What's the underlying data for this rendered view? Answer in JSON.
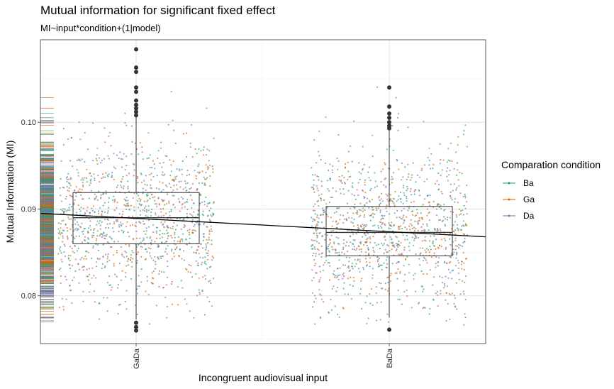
{
  "chart_data": {
    "type": "scatter",
    "title": "Mutual information for significant fixed effect",
    "subtitle": "MI~input*condition+(1|model)",
    "xlabel": "Incongruent audiovisual input",
    "ylabel": "Mutual Information (MI)",
    "categories": [
      "GaDa",
      "BaDa"
    ],
    "ylim": [
      0.0745,
      0.1095
    ],
    "yticks": [
      0.08,
      0.09,
      0.1
    ],
    "ytick_labels": [
      "0.08",
      "0.09",
      "0.10"
    ],
    "grid": true,
    "legend": {
      "title": "Comparation condition",
      "position": "right",
      "entries": [
        {
          "label": "Ba",
          "color": "#1b9e77"
        },
        {
          "label": "Ga",
          "color": "#d95f02"
        },
        {
          "label": "Da",
          "color": "#7570b3"
        }
      ]
    },
    "boxplots": [
      {
        "category": "GaDa",
        "q1": 0.086,
        "median": 0.089,
        "q3": 0.0919,
        "whisker_low": 0.0773,
        "whisker_high": 0.1007,
        "outliers": [
          0.1084,
          0.1063,
          0.1058,
          0.104,
          0.1035,
          0.1025,
          0.102,
          0.1016,
          0.1012,
          0.1008,
          0.0769,
          0.0764,
          0.076
        ]
      },
      {
        "category": "BaDa",
        "q1": 0.0846,
        "median": 0.0873,
        "q3": 0.0903,
        "whisker_low": 0.0775,
        "whisker_high": 0.0991,
        "outliers": [
          0.104,
          0.1018,
          0.101,
          0.1005,
          0.1,
          0.0996,
          0.0993,
          0.0761
        ]
      }
    ],
    "regression_line": {
      "y_at_left_edge": 0.0895,
      "y_at_right_edge": 0.0868
    },
    "jitter": {
      "points_per_category": 1200,
      "mean": 0.0887,
      "sd": 0.0047
    }
  }
}
